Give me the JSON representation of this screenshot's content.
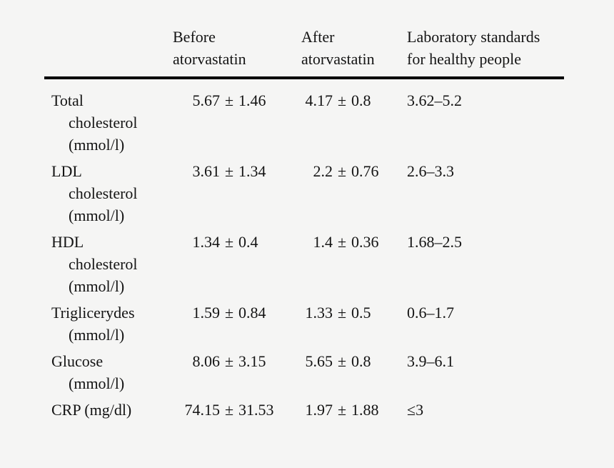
{
  "page": {
    "background_color": "#f5f5f4",
    "text_color": "#141414",
    "rule_color": "#000000"
  },
  "table": {
    "pm_sign": "±",
    "headers": {
      "metric": "",
      "before": [
        "Before",
        "atorvastatin"
      ],
      "after": [
        "After",
        "atorvastatin"
      ],
      "standards": [
        "Laboratory standards",
        "for healthy people"
      ]
    },
    "rows": [
      {
        "label": [
          "Total",
          "cholesterol",
          "(mmol/l)"
        ],
        "before": {
          "mean": "5.67",
          "sd": "1.46"
        },
        "after": {
          "mean": "4.17",
          "sd": "0.8"
        },
        "standard": "3.62–5.2"
      },
      {
        "label": [
          "LDL",
          "cholesterol",
          "(mmol/l)"
        ],
        "before": {
          "mean": "3.61",
          "sd": "1.34"
        },
        "after": {
          "mean": "2.2",
          "sd": "0.76"
        },
        "standard": "2.6–3.3"
      },
      {
        "label": [
          "HDL",
          "cholesterol",
          "(mmol/l)"
        ],
        "before": {
          "mean": "1.34",
          "sd": "0.4"
        },
        "after": {
          "mean": "1.4",
          "sd": "0.36"
        },
        "standard": "1.68–2.5"
      },
      {
        "label": [
          "Triglicerydes",
          "(mmol/l)"
        ],
        "before": {
          "mean": "1.59",
          "sd": "0.84"
        },
        "after": {
          "mean": "1.33",
          "sd": "0.5"
        },
        "standard": "0.6–1.7"
      },
      {
        "label": [
          "Glucose",
          "(mmol/l)"
        ],
        "before": {
          "mean": "8.06",
          "sd": "3.15"
        },
        "after": {
          "mean": "5.65",
          "sd": "0.8"
        },
        "standard": "3.9–6.1"
      },
      {
        "label": [
          "CRP (mg/dl)"
        ],
        "before": {
          "mean": "74.15",
          "sd": "31.53"
        },
        "after": {
          "mean": "1.97",
          "sd": "1.88"
        },
        "standard": "≤3"
      }
    ]
  }
}
